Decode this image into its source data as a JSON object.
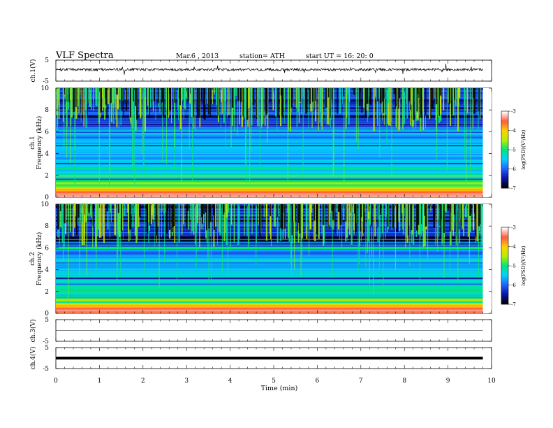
{
  "header": {
    "title": "VLF  Spectra",
    "date": "Mar.6   , 2013",
    "station": "station= ATH",
    "start": "start  UT  =    16: 20: 0"
  },
  "colors": {
    "spectrogram_background": "#000000",
    "colorbar_stops": [
      "#000000",
      "#0a14a8",
      "#1e64ff",
      "#00d2ff",
      "#00e678",
      "#b4f000",
      "#ffd200",
      "#ff5a3c",
      "#ffffff"
    ]
  },
  "chart_data": [
    {
      "id": "ch1_waveform",
      "type": "line",
      "ylabel": "ch.1(V)",
      "yticks": [
        "5",
        "-5"
      ],
      "ylim": [
        -5,
        5
      ],
      "description_signal": "noisy waveform near +0.5 V with sparse spikes"
    },
    {
      "id": "ch1_spectrogram",
      "type": "heatmap",
      "ylabel_top": "ch.1",
      "ylabel": "Frequency  (kHz)",
      "yticks": [
        "0",
        "2",
        "4",
        "6",
        "8",
        "10"
      ],
      "ylim": [
        0,
        10
      ],
      "xlim": [
        0,
        9.8
      ],
      "colorbar": {
        "label": "log(PSD)(V²/Hz)",
        "ticks": [
          "-3",
          "-4",
          "-5",
          "-6",
          "-7"
        ],
        "range": [
          -7,
          -3
        ]
      }
    },
    {
      "id": "ch2_spectrogram",
      "type": "heatmap",
      "ylabel_top": "ch.2",
      "ylabel": "Frequency  (kHz)",
      "yticks": [
        "0",
        "2",
        "4",
        "6",
        "8",
        "10"
      ],
      "ylim": [
        0,
        10
      ],
      "xlim": [
        0,
        9.8
      ],
      "colorbar": {
        "label": "log(PSD)(V²/Hz)",
        "ticks": [
          "-3",
          "-4",
          "-5",
          "-6",
          "-7"
        ],
        "range": [
          -7,
          -3
        ]
      }
    },
    {
      "id": "ch3_waveform",
      "type": "line",
      "ylabel": "ch.3(V)",
      "yticks": [
        "5",
        "-5"
      ],
      "ylim": [
        -5,
        5
      ]
    },
    {
      "id": "ch4_waveform",
      "type": "line",
      "ylabel": "ch.4(V)",
      "yticks": [
        "5",
        "-5"
      ],
      "ylim": [
        -5,
        5
      ]
    }
  ],
  "xaxis": {
    "label": "Time  (min)",
    "ticks": [
      "0",
      "1",
      "2",
      "3",
      "4",
      "5",
      "6",
      "7",
      "8",
      "9",
      "10"
    ],
    "xlim": [
      0,
      10
    ]
  }
}
